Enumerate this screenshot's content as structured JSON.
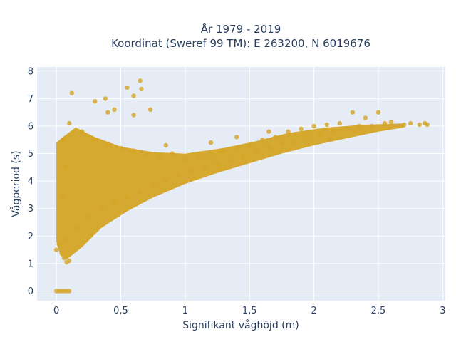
{
  "chart_data": {
    "type": "scatter",
    "title_line1": "År 1979 - 2019",
    "title_line2": "Koordinat (Sweref 99 TM): E 263200, N 6019676",
    "xlabel": "Signifikant våghöjd (m)",
    "ylabel": "Vågperiod (s)",
    "xlim": [
      -0.15,
      3.02
    ],
    "ylim": [
      -0.35,
      8.15
    ],
    "xticks": [
      0,
      0.5,
      1,
      1.5,
      2,
      2.5,
      3
    ],
    "xtick_labels": [
      "0",
      "0,5",
      "1",
      "1,5",
      "2",
      "2,5",
      "3"
    ],
    "yticks": [
      0,
      1,
      2,
      3,
      4,
      5,
      6,
      7,
      8
    ],
    "ytick_labels": [
      "0",
      "1",
      "2",
      "3",
      "4",
      "5",
      "6",
      "7",
      "8"
    ],
    "grid": true,
    "marker_color": "#d4a424",
    "plot_bg": "#e5ecf6",
    "series": [
      {
        "points": [
          [
            0.12,
            7.2
          ],
          [
            0.3,
            6.9
          ],
          [
            0.38,
            7.0
          ],
          [
            0.55,
            7.4
          ],
          [
            0.6,
            7.1
          ],
          [
            0.65,
            7.65
          ],
          [
            0.66,
            7.35
          ],
          [
            0.45,
            6.6
          ],
          [
            0.4,
            6.5
          ],
          [
            0.73,
            6.6
          ],
          [
            0.6,
            6.4
          ],
          [
            0.85,
            5.3
          ],
          [
            1.2,
            5.4
          ],
          [
            1.4,
            5.6
          ],
          [
            1.65,
            5.8
          ],
          [
            2.3,
            6.5
          ],
          [
            2.4,
            6.3
          ],
          [
            2.5,
            6.5
          ],
          [
            2.6,
            6.15
          ],
          [
            2.75,
            6.1
          ],
          [
            2.82,
            6.05
          ],
          [
            2.86,
            6.1
          ],
          [
            2.88,
            6.05
          ],
          [
            2.7,
            6.05
          ],
          [
            2.55,
            6.1
          ],
          [
            2.45,
            6.0
          ],
          [
            2.35,
            6.0
          ],
          [
            2.25,
            5.9
          ],
          [
            2.15,
            5.8
          ],
          [
            2.05,
            5.7
          ],
          [
            1.95,
            5.6
          ],
          [
            1.85,
            5.4
          ],
          [
            1.75,
            5.35
          ],
          [
            1.65,
            5.2
          ],
          [
            1.55,
            5.05
          ],
          [
            1.45,
            4.9
          ],
          [
            1.35,
            4.75
          ],
          [
            1.25,
            4.6
          ],
          [
            1.15,
            4.45
          ],
          [
            1.05,
            4.35
          ],
          [
            0.95,
            4.2
          ],
          [
            0.85,
            4.0
          ],
          [
            0.75,
            3.85
          ],
          [
            0.65,
            3.6
          ],
          [
            0.55,
            3.4
          ],
          [
            0.45,
            3.2
          ],
          [
            0.35,
            3.0
          ],
          [
            0.25,
            2.7
          ],
          [
            0.15,
            2.3
          ],
          [
            0.08,
            1.9
          ],
          [
            0.06,
            1.2
          ],
          [
            0.08,
            1.05
          ],
          [
            0.1,
            1.1
          ],
          [
            0.02,
            1.7
          ],
          [
            0.0,
            1.5
          ],
          [
            0.05,
            3.5
          ],
          [
            0.07,
            4.5
          ],
          [
            0.05,
            5.5
          ],
          [
            0.1,
            6.1
          ],
          [
            0.2,
            5.8
          ],
          [
            0.3,
            5.5
          ],
          [
            0.4,
            5.3
          ],
          [
            0.5,
            5.2
          ],
          [
            0.6,
            5.1
          ],
          [
            0.7,
            5.0
          ],
          [
            0.8,
            4.9
          ],
          [
            0.9,
            5.0
          ],
          [
            1.0,
            4.8
          ],
          [
            1.1,
            4.9
          ],
          [
            1.2,
            5.0
          ],
          [
            1.3,
            5.1
          ],
          [
            1.4,
            5.2
          ],
          [
            1.5,
            5.3
          ],
          [
            1.6,
            5.5
          ],
          [
            1.7,
            5.6
          ],
          [
            1.8,
            5.8
          ],
          [
            1.9,
            5.9
          ],
          [
            2.0,
            6.0
          ],
          [
            2.1,
            6.05
          ],
          [
            2.2,
            6.1
          ],
          [
            0.0,
            0.0
          ],
          [
            0.02,
            0.0
          ],
          [
            0.04,
            0.0
          ],
          [
            0.06,
            0.0
          ],
          [
            0.08,
            0.0
          ],
          [
            0.1,
            0.0
          ]
        ]
      }
    ]
  }
}
